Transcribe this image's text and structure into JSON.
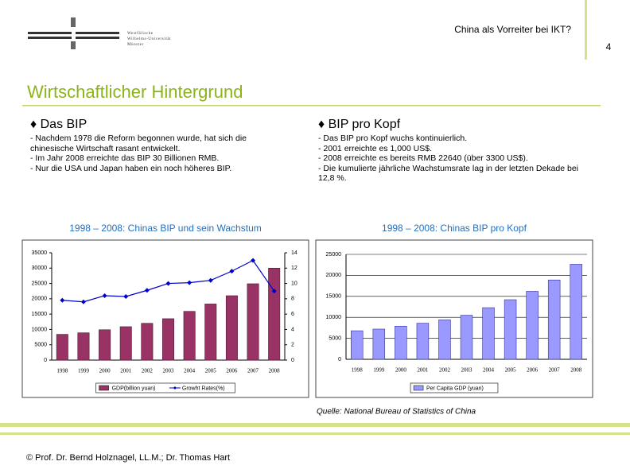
{
  "header": {
    "logo_lines": [
      "Westfälische",
      "Wilhelms-Universität",
      "Münster"
    ],
    "topic": "China als Vorreiter bei IKT?",
    "page_number": "4",
    "title": "Wirtschaftlicher Hintergrund"
  },
  "sections": [
    {
      "heading": "♦ Das BIP",
      "items": [
        "- Nachdem 1978 die Reform begonnen wurde, hat sich die chinesische Wirtschaft rasant entwickelt.",
        "- Im Jahr 2008 erreichte das BIP 30 Billionen RMB.",
        "- Nur die USA und Japan haben ein noch höheres BIP."
      ]
    },
    {
      "heading": "♦ BIP pro Kopf",
      "items": [
        "- Das BIP pro Kopf wuchs kontinuierlich.",
        "- 2001 erreichte es 1,000 US$.",
        "- 2008 erreichte es bereits RMB 22640 (über 3300 US$).",
        "- Die kumulierte jährliche Wachstumsrate lag in der letzten Dekade bei 12,8 %."
      ]
    }
  ],
  "chart_data": [
    {
      "type": "bar",
      "title": "1998 – 2008: Chinas BIP und sein Wachstum",
      "categories": [
        "1998",
        "1999",
        "2000",
        "2001",
        "2002",
        "2003",
        "2004",
        "2005",
        "2006",
        "2007",
        "2008"
      ],
      "series": [
        {
          "name": "GDP(billion yuan)",
          "type": "bar",
          "color": "#993366",
          "values": [
            8400,
            8900,
            9900,
            10900,
            12000,
            13500,
            15900,
            18300,
            21000,
            24900,
            30000
          ]
        },
        {
          "name": "Growht Rates(%)",
          "type": "line",
          "axis": "y2",
          "color": "#0000cc",
          "values": [
            7.8,
            7.6,
            8.4,
            8.3,
            9.1,
            10.0,
            10.1,
            10.4,
            11.6,
            13.0,
            9.0
          ]
        }
      ],
      "ylim": [
        0,
        35000
      ],
      "yticks": [
        0,
        5000,
        10000,
        15000,
        20000,
        25000,
        30000,
        35000
      ],
      "y2lim": [
        0,
        14
      ],
      "y2ticks": [
        0,
        2,
        4,
        6,
        8,
        10,
        12,
        14
      ],
      "grid": false,
      "legend": "bottom"
    },
    {
      "type": "bar",
      "title": "1998 – 2008: Chinas BIP pro Kopf",
      "categories": [
        "1998",
        "1999",
        "2000",
        "2001",
        "2002",
        "2003",
        "2004",
        "2005",
        "2006",
        "2007",
        "2008"
      ],
      "series": [
        {
          "name": "Per Capita GDP (yuan)",
          "type": "bar",
          "color": "#9999ff",
          "values": [
            6800,
            7200,
            7900,
            8600,
            9400,
            10500,
            12300,
            14200,
            16200,
            18900,
            22640
          ]
        }
      ],
      "ylim": [
        0,
        25000
      ],
      "yticks": [
        0,
        5000,
        10000,
        15000,
        20000,
        25000
      ],
      "grid": true,
      "legend": "bottom"
    }
  ],
  "source": "Quelle: National Bureau of Statistics of China",
  "footer": "© Prof. Dr. Bernd Holznagel, LL.M.; Dr. Thomas Hart"
}
